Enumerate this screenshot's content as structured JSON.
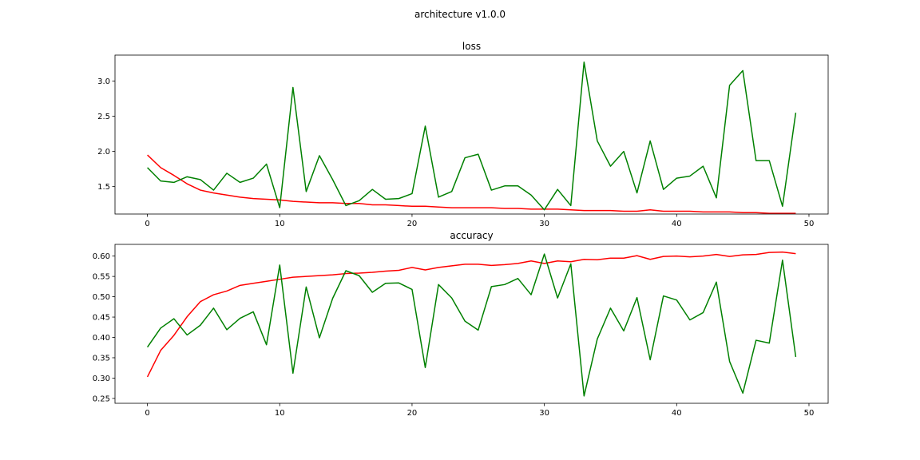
{
  "figure": {
    "title": "architecture v1.0.0"
  },
  "chart_data": [
    {
      "type": "line",
      "title": "loss",
      "xlabel": "",
      "ylabel": "",
      "xlim": [
        -2.45,
        51.45
      ],
      "ylim": [
        1.11,
        3.37
      ],
      "xticks": [
        0,
        10,
        20,
        30,
        40,
        50
      ],
      "yticks": [
        1.5,
        2.0,
        2.5,
        3.0
      ],
      "ytick_labels": [
        "1.5",
        "2.0",
        "2.5",
        "3.0"
      ],
      "grid": false,
      "x": [
        0,
        1,
        2,
        3,
        4,
        5,
        6,
        7,
        8,
        9,
        10,
        11,
        12,
        13,
        14,
        15,
        16,
        17,
        18,
        19,
        20,
        21,
        22,
        23,
        24,
        25,
        26,
        27,
        28,
        29,
        30,
        31,
        32,
        33,
        34,
        35,
        36,
        37,
        38,
        39,
        40,
        41,
        42,
        43,
        44,
        45,
        46,
        47,
        48,
        49
      ],
      "series": [
        {
          "color": "#ff0000",
          "values": [
            1.95,
            1.77,
            1.66,
            1.54,
            1.45,
            1.41,
            1.38,
            1.35,
            1.33,
            1.32,
            1.31,
            1.29,
            1.28,
            1.27,
            1.27,
            1.26,
            1.26,
            1.24,
            1.24,
            1.23,
            1.22,
            1.22,
            1.21,
            1.2,
            1.2,
            1.2,
            1.2,
            1.19,
            1.19,
            1.18,
            1.18,
            1.18,
            1.17,
            1.16,
            1.16,
            1.16,
            1.15,
            1.15,
            1.17,
            1.15,
            1.15,
            1.15,
            1.14,
            1.14,
            1.14,
            1.13,
            1.13,
            1.12,
            1.12,
            1.12
          ]
        },
        {
          "color": "#008000",
          "values": [
            1.77,
            1.58,
            1.56,
            1.64,
            1.6,
            1.45,
            1.69,
            1.56,
            1.62,
            1.82,
            1.2,
            2.91,
            1.43,
            1.94,
            1.6,
            1.23,
            1.3,
            1.46,
            1.32,
            1.33,
            1.4,
            2.36,
            1.35,
            1.43,
            1.91,
            1.96,
            1.45,
            1.51,
            1.51,
            1.38,
            1.17,
            1.46,
            1.23,
            3.27,
            2.15,
            1.79,
            2.0,
            1.41,
            2.15,
            1.46,
            1.62,
            1.65,
            1.79,
            1.34,
            2.94,
            3.15,
            1.87,
            1.87,
            1.22,
            2.55
          ]
        }
      ]
    },
    {
      "type": "line",
      "title": "accuracy",
      "xlabel": "",
      "ylabel": "",
      "xlim": [
        -2.45,
        51.45
      ],
      "ylim": [
        0.238,
        0.6288
      ],
      "xticks": [
        0,
        10,
        20,
        30,
        40,
        50
      ],
      "yticks": [
        0.25,
        0.3,
        0.35,
        0.4,
        0.45,
        0.5,
        0.55,
        0.6
      ],
      "ytick_labels": [
        "0.25",
        "0.30",
        "0.35",
        "0.40",
        "0.45",
        "0.50",
        "0.55",
        "0.60"
      ],
      "grid": false,
      "x": [
        0,
        1,
        2,
        3,
        4,
        5,
        6,
        7,
        8,
        9,
        10,
        11,
        12,
        13,
        14,
        15,
        16,
        17,
        18,
        19,
        20,
        21,
        22,
        23,
        24,
        25,
        26,
        27,
        28,
        29,
        30,
        31,
        32,
        33,
        34,
        35,
        36,
        37,
        38,
        39,
        40,
        41,
        42,
        43,
        44,
        45,
        46,
        47,
        48,
        49
      ],
      "series": [
        {
          "color": "#ff0000",
          "values": [
            0.303,
            0.368,
            0.405,
            0.451,
            0.488,
            0.505,
            0.514,
            0.528,
            0.533,
            0.538,
            0.543,
            0.548,
            0.55,
            0.552,
            0.554,
            0.557,
            0.558,
            0.56,
            0.563,
            0.565,
            0.572,
            0.566,
            0.572,
            0.576,
            0.58,
            0.58,
            0.577,
            0.579,
            0.582,
            0.588,
            0.582,
            0.588,
            0.586,
            0.592,
            0.591,
            0.595,
            0.595,
            0.601,
            0.592,
            0.599,
            0.6,
            0.598,
            0.6,
            0.604,
            0.599,
            0.603,
            0.604,
            0.609,
            0.61,
            0.606
          ]
        },
        {
          "color": "#008000",
          "values": [
            0.376,
            0.423,
            0.446,
            0.406,
            0.43,
            0.472,
            0.419,
            0.447,
            0.463,
            0.382,
            0.578,
            0.312,
            0.524,
            0.399,
            0.496,
            0.564,
            0.552,
            0.511,
            0.533,
            0.534,
            0.518,
            0.326,
            0.53,
            0.497,
            0.44,
            0.418,
            0.525,
            0.53,
            0.545,
            0.505,
            0.605,
            0.497,
            0.581,
            0.256,
            0.396,
            0.472,
            0.416,
            0.498,
            0.345,
            0.502,
            0.492,
            0.443,
            0.461,
            0.536,
            0.341,
            0.263,
            0.393,
            0.386,
            0.59,
            0.352
          ]
        }
      ]
    }
  ]
}
